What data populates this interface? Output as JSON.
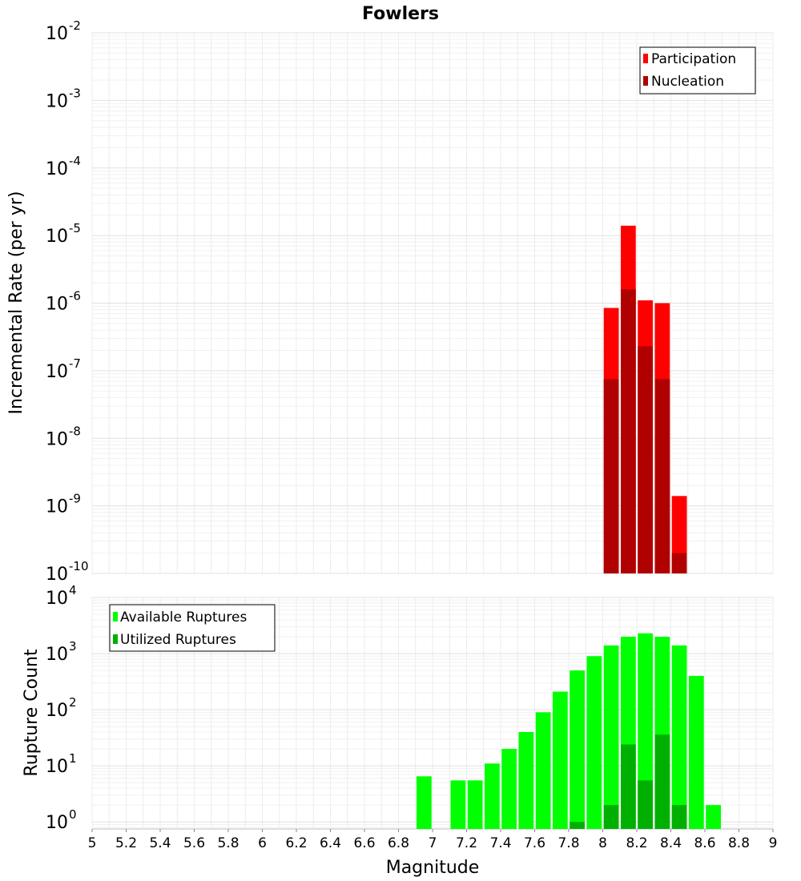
{
  "chart_data": [
    {
      "type": "bar",
      "title": "Fowlers",
      "ylabel": "Incremental Rate (per yr)",
      "xlabel": "",
      "y_scale": "log",
      "ylim": [
        1e-10,
        0.01
      ],
      "xlim": [
        5,
        9
      ],
      "bin_width": 0.1,
      "legend_position": "top-right",
      "x": [
        8.05,
        8.15,
        8.25,
        8.35,
        8.45
      ],
      "series": [
        {
          "name": "Participation",
          "color": "#ff0000",
          "values": [
            8.5e-07,
            1.4e-05,
            1.1e-06,
            1e-06,
            1.4e-09
          ]
        },
        {
          "name": "Nucleation",
          "color": "#b00000",
          "values": [
            7.5e-08,
            1.6e-06,
            2.3e-07,
            7.5e-08,
            2e-10
          ]
        }
      ]
    },
    {
      "type": "bar",
      "title": "",
      "ylabel": "Rupture Count",
      "xlabel": "Magnitude",
      "y_scale": "log",
      "ylim": [
        0.75,
        10000
      ],
      "xlim": [
        5,
        9
      ],
      "bin_width": 0.1,
      "legend_position": "top-left",
      "x_ticks": [
        "5",
        "5.2",
        "5.4",
        "5.6",
        "5.8",
        "6",
        "6.2",
        "6.4",
        "6.6",
        "6.8",
        "7",
        "7.2",
        "7.4",
        "7.6",
        "7.8",
        "8",
        "8.2",
        "8.4",
        "8.6",
        "8.8",
        "9"
      ],
      "series": [
        {
          "name": "Available Ruptures",
          "color": "#00ff00",
          "x": [
            6.95,
            7.15,
            7.25,
            7.35,
            7.45,
            7.55,
            7.65,
            7.75,
            7.85,
            7.95,
            8.05,
            8.15,
            8.25,
            8.35,
            8.45,
            8.55,
            8.65
          ],
          "values": [
            6.5,
            5.5,
            5.5,
            11,
            20,
            40,
            90,
            210,
            500,
            900,
            1400,
            2000,
            2300,
            2000,
            1400,
            400,
            2
          ]
        },
        {
          "name": "Utilized Ruptures",
          "color": "#00b000",
          "x": [
            7.85,
            8.05,
            8.15,
            8.25,
            8.35,
            8.45
          ],
          "values": [
            1,
            2,
            24,
            5.5,
            36,
            2
          ]
        }
      ]
    }
  ]
}
